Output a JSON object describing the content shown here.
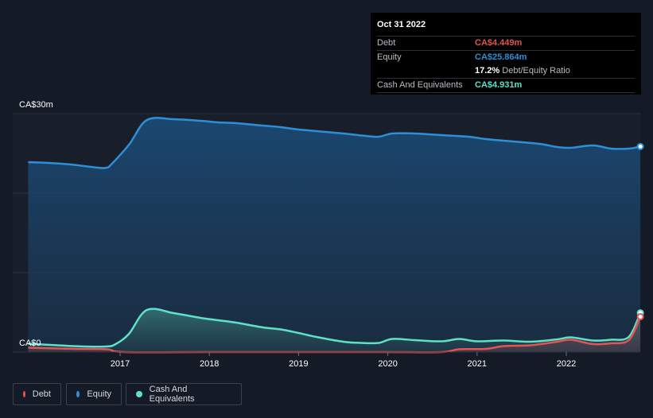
{
  "chart_data": {
    "type": "area",
    "ylabel_top": "CA$30m",
    "ylabel_bottom": "CA$0",
    "ylim": [
      0,
      30
    ],
    "x_ticks": [
      "2017",
      "2018",
      "2019",
      "2020",
      "2021",
      "2022"
    ],
    "series": [
      {
        "name": "Debt",
        "color": "#e35454",
        "points": [
          [
            2015.97,
            0.55
          ],
          [
            2016.5,
            0.4
          ],
          [
            2016.85,
            0.35
          ],
          [
            2017.05,
            0.0
          ],
          [
            2018.0,
            0.0
          ],
          [
            2019.0,
            0.0
          ],
          [
            2020.0,
            0.0
          ],
          [
            2020.6,
            0.0
          ],
          [
            2020.8,
            0.35
          ],
          [
            2021.1,
            0.4
          ],
          [
            2021.3,
            0.75
          ],
          [
            2021.6,
            0.85
          ],
          [
            2021.9,
            1.3
          ],
          [
            2022.05,
            1.55
          ],
          [
            2022.3,
            1.0
          ],
          [
            2022.5,
            1.1
          ],
          [
            2022.7,
            1.5
          ],
          [
            2022.83,
            4.449
          ]
        ]
      },
      {
        "name": "Equity",
        "color": "#2d8fd8",
        "points": [
          [
            2015.97,
            23.9
          ],
          [
            2016.2,
            23.8
          ],
          [
            2016.45,
            23.6
          ],
          [
            2016.75,
            23.2
          ],
          [
            2016.85,
            23.2
          ],
          [
            2016.9,
            23.6
          ],
          [
            2017.1,
            26.1
          ],
          [
            2017.3,
            29.2
          ],
          [
            2017.6,
            29.3
          ],
          [
            2017.9,
            29.1
          ],
          [
            2018.1,
            28.9
          ],
          [
            2018.3,
            28.8
          ],
          [
            2018.6,
            28.5
          ],
          [
            2018.8,
            28.3
          ],
          [
            2019.0,
            28.0
          ],
          [
            2019.2,
            27.8
          ],
          [
            2019.5,
            27.5
          ],
          [
            2019.75,
            27.2
          ],
          [
            2019.9,
            27.1
          ],
          [
            2020.05,
            27.5
          ],
          [
            2020.3,
            27.5
          ],
          [
            2020.6,
            27.3
          ],
          [
            2020.9,
            27.1
          ],
          [
            2021.1,
            26.8
          ],
          [
            2021.4,
            26.5
          ],
          [
            2021.7,
            26.2
          ],
          [
            2021.9,
            25.8
          ],
          [
            2022.05,
            25.7
          ],
          [
            2022.3,
            26.0
          ],
          [
            2022.5,
            25.6
          ],
          [
            2022.7,
            25.6
          ],
          [
            2022.83,
            25.864
          ]
        ]
      },
      {
        "name": "Cash And Equivalents",
        "color": "#5fe0c8",
        "points": [
          [
            2015.97,
            1.05
          ],
          [
            2016.3,
            0.85
          ],
          [
            2016.6,
            0.7
          ],
          [
            2016.85,
            0.7
          ],
          [
            2016.95,
            1.0
          ],
          [
            2017.1,
            2.3
          ],
          [
            2017.3,
            5.3
          ],
          [
            2017.6,
            4.9
          ],
          [
            2017.9,
            4.3
          ],
          [
            2018.1,
            4.0
          ],
          [
            2018.3,
            3.7
          ],
          [
            2018.6,
            3.1
          ],
          [
            2018.8,
            2.85
          ],
          [
            2019.0,
            2.4
          ],
          [
            2019.2,
            1.9
          ],
          [
            2019.5,
            1.3
          ],
          [
            2019.7,
            1.15
          ],
          [
            2019.9,
            1.15
          ],
          [
            2020.05,
            1.65
          ],
          [
            2020.3,
            1.5
          ],
          [
            2020.6,
            1.35
          ],
          [
            2020.8,
            1.65
          ],
          [
            2021.0,
            1.35
          ],
          [
            2021.3,
            1.45
          ],
          [
            2021.6,
            1.3
          ],
          [
            2021.9,
            1.6
          ],
          [
            2022.05,
            1.85
          ],
          [
            2022.3,
            1.45
          ],
          [
            2022.5,
            1.55
          ],
          [
            2022.7,
            1.9
          ],
          [
            2022.83,
            4.931
          ]
        ]
      }
    ],
    "x_range": [
      2015.8,
      2022.83
    ],
    "grid": true,
    "legend_position": "bottom-left"
  },
  "tooltip": {
    "date": "Oct 31 2022",
    "debt_label": "Debt",
    "debt_value": "CA$4.449m",
    "equity_label": "Equity",
    "equity_value": "CA$25.864m",
    "ratio_value": "17.2%",
    "ratio_label": "Debt/Equity Ratio",
    "cash_label": "Cash And Equivalents",
    "cash_value": "CA$4.931m"
  },
  "legend": {
    "debt": "Debt",
    "equity": "Equity",
    "cash": "Cash And Equivalents"
  }
}
